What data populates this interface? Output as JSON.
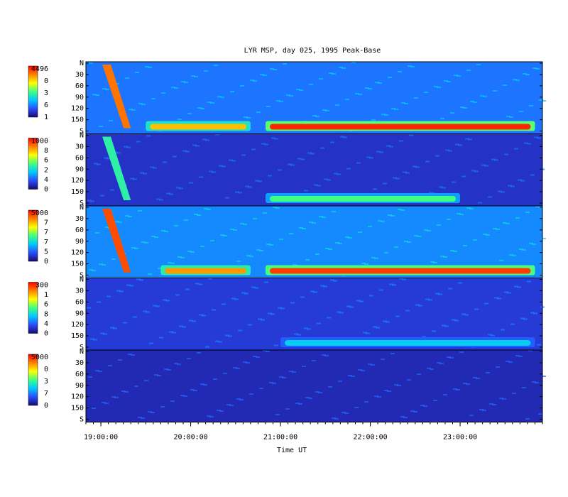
{
  "chart_data": {
    "type": "heatmap",
    "title": "LYR MSP, day 025, 1995 Peak-Base",
    "xlabel": "Time UT",
    "x_ticks": [
      "19:00:00",
      "20:00:00",
      "21:00:00",
      "22:00:00",
      "23:00:00"
    ],
    "xlim": [
      "18:50:00",
      "23:55:00"
    ],
    "y_ticks": [
      "N",
      "30",
      "60",
      "90",
      "120",
      "150",
      "S"
    ],
    "colorscale": [
      "#1a0a6e",
      "#2a4cff",
      "#00c8ff",
      "#40ff80",
      "#ffff00",
      "#ff8000",
      "#ff0000"
    ],
    "background_color": "#1a1a6a",
    "panels": [
      {
        "colorbar_labels": [
          "4496",
          "0",
          "3",
          "6",
          "1"
        ],
        "range": [
          1,
          4496
        ],
        "base_level": 0.22,
        "features": [
          {
            "description_type": "poleward arc",
            "time_range": [
              "19:00",
              "19:20"
            ],
            "level": 0.85
          },
          {
            "description_type": "equatorward band",
            "time_range": [
              "19:30",
              "20:40"
            ],
            "level": 0.75
          },
          {
            "description_type": "equatorward band",
            "time_range": [
              "20:50",
              "23:50"
            ],
            "level": 0.95
          }
        ]
      },
      {
        "colorbar_labels": [
          "1000",
          "8",
          "6",
          "2",
          "4",
          "0"
        ],
        "range": [
          0,
          1000
        ],
        "base_level": 0.1,
        "features": [
          {
            "description_type": "poleward arc",
            "time_range": [
              "19:00",
              "19:20"
            ],
            "level": 0.45
          },
          {
            "description_type": "equatorward band",
            "time_range": [
              "20:50",
              "23:00"
            ],
            "level": 0.5
          }
        ]
      },
      {
        "colorbar_labels": [
          "5000",
          "7",
          "7",
          "7",
          "5",
          "0"
        ],
        "range": [
          0,
          5000
        ],
        "base_level": 0.25,
        "features": [
          {
            "description_type": "poleward arc",
            "time_range": [
              "19:00",
              "19:20"
            ],
            "level": 0.9
          },
          {
            "description_type": "equatorward band",
            "time_range": [
              "19:40",
              "20:40"
            ],
            "level": 0.8
          },
          {
            "description_type": "equatorward band",
            "time_range": [
              "20:50",
              "23:50"
            ],
            "level": 0.92
          }
        ]
      },
      {
        "colorbar_labels": [
          "300",
          "1",
          "6",
          "8",
          "4",
          "0"
        ],
        "range": [
          0,
          300
        ],
        "base_level": 0.12,
        "features": [
          {
            "description_type": "equatorward band",
            "time_range": [
              "21:00",
              "23:50"
            ],
            "level": 0.35
          }
        ]
      },
      {
        "colorbar_labels": [
          "5000",
          "0",
          "3",
          "7",
          "0"
        ],
        "range": [
          0,
          5000
        ],
        "base_level": 0.08,
        "features": []
      }
    ]
  }
}
